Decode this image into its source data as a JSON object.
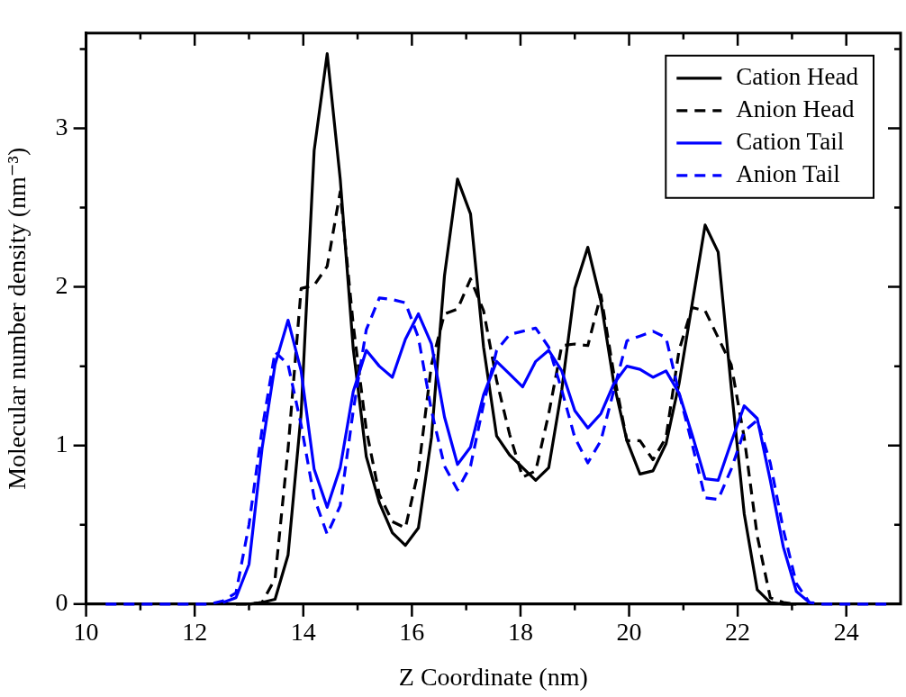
{
  "chart_data": {
    "type": "line",
    "xlabel": "Z Coordinate (nm)",
    "ylabel": "Molecular number density (nm⁻³)",
    "x": [
      10.36,
      10.6,
      10.84,
      11.08,
      11.32,
      11.56,
      11.8,
      12.04,
      12.28,
      12.52,
      12.76,
      13.0,
      13.24,
      13.48,
      13.72,
      13.96,
      14.2,
      14.44,
      14.68,
      14.92,
      15.16,
      15.4,
      15.64,
      15.88,
      16.12,
      16.36,
      16.6,
      16.84,
      17.08,
      17.32,
      17.56,
      17.8,
      18.04,
      18.28,
      18.52,
      18.76,
      19.0,
      19.24,
      19.48,
      19.72,
      19.96,
      20.2,
      20.44,
      20.68,
      20.92,
      21.16,
      21.4,
      21.64,
      21.88,
      22.12,
      22.36,
      22.6,
      22.84,
      23.08,
      23.32,
      23.56,
      23.8,
      24.04,
      24.28,
      24.52,
      24.76
    ],
    "series": [
      {
        "name": "Cation Head",
        "color": "#000000",
        "line_style": "solid",
        "values": [
          null,
          null,
          null,
          null,
          null,
          null,
          null,
          null,
          null,
          null,
          null,
          0,
          0.01,
          0.03,
          0.31,
          1.2,
          2.86,
          3.47,
          2.68,
          1.61,
          0.93,
          0.64,
          0.45,
          0.37,
          0.48,
          1.05,
          2.07,
          2.68,
          2.46,
          1.62,
          1.06,
          0.94,
          0.86,
          0.78,
          0.86,
          1.35,
          1.99,
          2.25,
          1.91,
          1.39,
          1.03,
          0.82,
          0.84,
          1.01,
          1.39,
          1.89,
          2.39,
          2.22,
          1.37,
          0.57,
          0.09,
          0.01,
          0,
          0,
          null,
          null,
          null,
          null,
          null,
          null,
          null
        ]
      },
      {
        "name": "Anion Head",
        "color": "#000000",
        "line_style": "dashed",
        "values": [
          null,
          null,
          null,
          null,
          null,
          null,
          null,
          null,
          null,
          null,
          0,
          0,
          0.01,
          0.16,
          0.98,
          1.99,
          2.01,
          2.13,
          2.6,
          1.76,
          1.1,
          0.69,
          0.52,
          0.48,
          0.84,
          1.51,
          1.83,
          1.86,
          2.05,
          1.85,
          1.41,
          1.07,
          0.8,
          0.84,
          1.2,
          1.63,
          1.64,
          1.63,
          1.95,
          1.45,
          1.03,
          1.03,
          0.91,
          1.05,
          1.6,
          1.87,
          1.85,
          1.68,
          1.51,
          1.05,
          0.43,
          0.04,
          0.01,
          0,
          null,
          null,
          null,
          null,
          null,
          null,
          null
        ]
      },
      {
        "name": "Cation Tail",
        "color": "#0000ff",
        "line_style": "solid",
        "values": [
          null,
          null,
          null,
          null,
          null,
          null,
          null,
          null,
          null,
          0.01,
          0.04,
          0.25,
          0.98,
          1.51,
          1.79,
          1.47,
          0.85,
          0.61,
          0.86,
          1.34,
          1.6,
          1.5,
          1.43,
          1.67,
          1.83,
          1.64,
          1.18,
          0.88,
          0.99,
          1.32,
          1.53,
          1.45,
          1.37,
          1.53,
          1.6,
          1.47,
          1.22,
          1.11,
          1.2,
          1.39,
          1.5,
          1.48,
          1.43,
          1.47,
          1.33,
          1.07,
          0.79,
          0.78,
          1.02,
          1.25,
          1.17,
          0.78,
          0.36,
          0.08,
          0.01,
          null,
          null,
          null,
          null,
          null,
          null
        ]
      },
      {
        "name": "Anion Tail",
        "color": "#0000ff",
        "line_style": "dashed",
        "values": [
          0,
          0,
          0,
          0,
          0,
          0,
          0,
          0,
          0,
          0.02,
          0.07,
          0.5,
          1.1,
          1.59,
          1.51,
          1.13,
          0.67,
          0.44,
          0.62,
          1.22,
          1.73,
          1.93,
          1.92,
          1.9,
          1.68,
          1.22,
          0.87,
          0.72,
          0.87,
          1.26,
          1.6,
          1.7,
          1.72,
          1.74,
          1.62,
          1.35,
          1.05,
          0.89,
          1.03,
          1.35,
          1.66,
          1.69,
          1.72,
          1.68,
          1.33,
          1.01,
          0.67,
          0.66,
          0.85,
          1.09,
          1.16,
          0.89,
          0.47,
          0.13,
          0.01,
          0,
          0,
          0,
          0,
          0,
          0
        ]
      }
    ],
    "xlim": [
      10,
      25
    ],
    "xticks": [
      10,
      {
        "value": 11,
        "label": null
      },
      12,
      {
        "value": 13,
        "label": null
      },
      14,
      {
        "value": 15,
        "label": null
      },
      16,
      {
        "value": 17,
        "label": null
      },
      18,
      {
        "value": 19,
        "label": null
      },
      20,
      {
        "value": 21,
        "label": null
      },
      22,
      {
        "value": 23,
        "label": null
      },
      24
    ],
    "ylim": [
      0,
      3.6
    ],
    "yticks": [
      0,
      {
        "value": 0.5,
        "label": null
      },
      1,
      {
        "value": 1.5,
        "label": null
      },
      2,
      {
        "value": 2.5,
        "label": null
      },
      3,
      {
        "value": 3.5,
        "label": null
      }
    ],
    "grid": false,
    "legend": "top right",
    "marker": "none"
  }
}
